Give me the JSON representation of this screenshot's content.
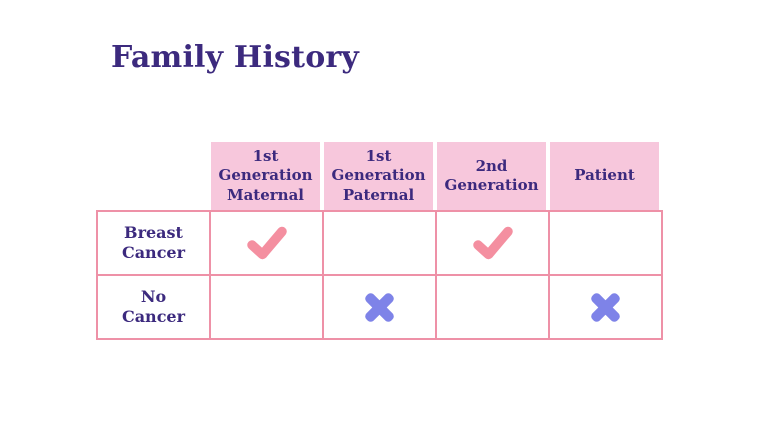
{
  "slide": {
    "title": "Family History",
    "colors": {
      "title_text": "#3c2a7e",
      "header_bg": "#f7c7dc",
      "table_border": "#ee91a7",
      "check_mark": "#f48fa0",
      "cross_mark": "#7e83e8",
      "background": "#ffffff"
    }
  },
  "table": {
    "column_headers": [
      "1st Generation Maternal",
      "1st Generation Paternal",
      "2nd Generation",
      "Patient"
    ],
    "rows": [
      {
        "label": "Breast Cancer",
        "cells": [
          "check",
          "",
          "check",
          ""
        ]
      },
      {
        "label": "No Cancer",
        "cells": [
          "",
          "cross",
          "",
          "cross"
        ]
      }
    ],
    "legend": {
      "check_meaning": "check-icon",
      "cross_meaning": "cross-icon"
    }
  }
}
